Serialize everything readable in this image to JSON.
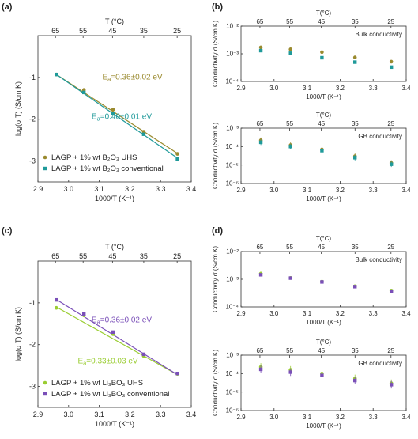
{
  "figure": {
    "panel_labels": [
      "(a)",
      "(b)",
      "(c)",
      "(d)"
    ],
    "colors": {
      "olive": "#9a8a2e",
      "teal": "#1f9a9a",
      "lime": "#9acd32",
      "purple": "#7a4fb8",
      "axis": "#333333"
    }
  },
  "chart_data": [
    {
      "id": "a",
      "type": "scatter",
      "xlabel": "1000/T (K⁻¹)",
      "ylabel": "log(σ T) (S/cm K)",
      "top_axis_label": "T (°C)",
      "top_ticks": [
        65,
        55,
        45,
        35,
        25
      ],
      "xlim": [
        2.9,
        3.4
      ],
      "ylim": [
        -3.5,
        0
      ],
      "xticks": [
        "2.9",
        "3.0",
        "3.1",
        "3.2",
        "3.3",
        "3.4"
      ],
      "yticks": [
        "-1",
        "-2",
        "-3"
      ],
      "x": [
        2.96,
        3.05,
        3.145,
        3.245,
        3.355
      ],
      "series": [
        {
          "name": "LAGP + 1% wt B₂O₃ UHS",
          "color": "olive",
          "marker": "circle",
          "values": [
            -0.93,
            -1.3,
            -1.77,
            -2.3,
            -2.83
          ],
          "fit": [
            [
              2.96,
              -0.93
            ],
            [
              3.355,
              -2.82
            ]
          ],
          "annotation": "Eₐ=0.36±0.02 eV"
        },
        {
          "name": "LAGP + 1% wt B₂O₃ conventional",
          "color": "teal",
          "marker": "square",
          "values": [
            -0.93,
            -1.36,
            -1.87,
            -2.36,
            -2.95
          ],
          "fit": [
            [
              2.96,
              -0.93
            ],
            [
              3.355,
              -2.93
            ]
          ],
          "annotation": "Eₐ=0.40±0.01 eV"
        }
      ],
      "legend": "bottom-left"
    },
    {
      "id": "b-bulk",
      "type": "scatter",
      "log_y": true,
      "xlabel": "1000/T (K⁻¹)",
      "ylabel": "Conductivity σ (S/cm K)",
      "top_axis_label": "T(°C)",
      "top_ticks": [
        65,
        55,
        45,
        35,
        25
      ],
      "xlim": [
        2.9,
        3.4
      ],
      "ylim": [
        0.0001,
        0.01
      ],
      "xticks": [
        "2.9",
        "3.0",
        "3.1",
        "3.2",
        "3.3",
        "3.4"
      ],
      "yticks": [
        "10⁻⁴",
        "10⁻³",
        "10⁻²"
      ],
      "x": [
        2.96,
        3.05,
        3.145,
        3.245,
        3.355
      ],
      "series": [
        {
          "color": "olive",
          "marker": "circle",
          "values": [
            0.0017,
            0.00145,
            0.00115,
            0.00074,
            0.00052
          ]
        },
        {
          "color": "teal",
          "marker": "square",
          "values": [
            0.0013,
            0.00105,
            0.00072,
            0.0005,
            0.00033
          ]
        }
      ],
      "annotation": "Bulk conductivity"
    },
    {
      "id": "b-gb",
      "type": "scatter",
      "log_y": true,
      "xlabel": "1000/T (K⁻¹)",
      "ylabel": "Conductivity σ (S/cm K)",
      "top_axis_label": "T(°C)",
      "top_ticks": [
        65,
        55,
        45,
        35,
        25
      ],
      "xlim": [
        2.9,
        3.4
      ],
      "ylim": [
        1e-06,
        0.001
      ],
      "xticks": [
        "2.9",
        "3.0",
        "3.1",
        "3.2",
        "3.3",
        "3.4"
      ],
      "yticks": [
        "10⁻⁶",
        "10⁻⁵",
        "10⁻⁴",
        "10⁻³"
      ],
      "x": [
        2.96,
        3.05,
        3.145,
        3.245,
        3.355
      ],
      "series": [
        {
          "color": "olive",
          "marker": "circle",
          "values": [
            0.00022,
            0.00012,
            7e-05,
            3e-05,
            1.3e-05
          ]
        },
        {
          "color": "teal",
          "marker": "square",
          "values": [
            0.00017,
            0.0001,
            6e-05,
            2.5e-05,
            1.1e-05
          ]
        }
      ],
      "error_factor": 1.4,
      "annotation": "GB conductivity"
    },
    {
      "id": "c",
      "type": "scatter",
      "xlabel": "1000/T (K⁻¹)",
      "ylabel": "log(σ T) (S/cm K)",
      "top_axis_label": "T (°C)",
      "top_ticks": [
        65,
        55,
        45,
        35,
        25
      ],
      "xlim": [
        2.9,
        3.4
      ],
      "ylim": [
        -3.5,
        0
      ],
      "xticks": [
        "2.9",
        "3.0",
        "3.1",
        "3.2",
        "3.3",
        "3.4"
      ],
      "yticks": [
        "-1",
        "-2",
        "-3"
      ],
      "x": [
        2.96,
        3.05,
        3.145,
        3.245,
        3.355
      ],
      "series": [
        {
          "name": "LAGP + 1% wt Li₃BO₃ UHS",
          "color": "lime",
          "marker": "circle",
          "values": [
            -1.12,
            -1.3,
            -1.75,
            -2.27,
            -2.7
          ],
          "fit": [
            [
              2.96,
              -1.1
            ],
            [
              3.355,
              -2.72
            ]
          ],
          "annotation": "Eₐ=0.33±0.03 eV"
        },
        {
          "name": "LAGP + 1% wt Li₃BO₃ conventional",
          "color": "purple",
          "marker": "square",
          "values": [
            -0.93,
            -1.27,
            -1.7,
            -2.23,
            -2.69
          ],
          "fit": [
            [
              2.96,
              -0.92
            ],
            [
              3.355,
              -2.72
            ]
          ],
          "annotation": "Eₐ=0.36±0.02 eV"
        }
      ],
      "legend": "bottom-left"
    },
    {
      "id": "d-bulk",
      "type": "scatter",
      "log_y": true,
      "xlabel": "1000/T (K⁻¹)",
      "ylabel": "Conductivity σ (S/cm K)",
      "top_axis_label": "T(°C)",
      "top_ticks": [
        65,
        55,
        45,
        35,
        25
      ],
      "xlim": [
        2.9,
        3.4
      ],
      "ylim": [
        0.0001,
        0.01
      ],
      "xticks": [
        "2.9",
        "3.0",
        "3.1",
        "3.2",
        "3.3",
        "3.4"
      ],
      "yticks": [
        "10⁻⁴",
        "10⁻³",
        "10⁻²"
      ],
      "x": [
        2.96,
        3.05,
        3.145,
        3.245,
        3.355
      ],
      "series": [
        {
          "color": "lime",
          "marker": "circle",
          "values": [
            0.0016,
            0.00112,
            0.00082,
            0.00056,
            0.00039
          ]
        },
        {
          "color": "purple",
          "marker": "square",
          "values": [
            0.00145,
            0.0011,
            0.0008,
            0.00054,
            0.00037
          ]
        }
      ],
      "annotation": "Bulk conductivity"
    },
    {
      "id": "d-gb",
      "type": "scatter",
      "log_y": true,
      "xlabel": "1000/T (K⁻¹)",
      "ylabel": "Conductivity σ (S/cm K)",
      "top_axis_label": "T(°C)",
      "top_ticks": [
        65,
        55,
        45,
        35,
        25
      ],
      "xlim": [
        2.9,
        3.4
      ],
      "ylim": [
        1e-06,
        0.001
      ],
      "xticks": [
        "2.9",
        "3.0",
        "3.1",
        "3.2",
        "3.3",
        "3.4"
      ],
      "yticks": [
        "10⁻⁶",
        "10⁻⁵",
        "10⁻⁴",
        "10⁻³"
      ],
      "x": [
        2.96,
        3.05,
        3.145,
        3.245,
        3.355
      ],
      "series": [
        {
          "color": "lime",
          "marker": "circle",
          "values": [
            0.00023,
            0.00016,
            0.0001,
            5.5e-05,
            3e-05
          ]
        },
        {
          "color": "purple",
          "marker": "square",
          "values": [
            0.00017,
            0.00012,
            8e-05,
            4.2e-05,
            2.5e-05
          ]
        }
      ],
      "error_factor": 1.6,
      "annotation": "GB conductivity"
    }
  ]
}
